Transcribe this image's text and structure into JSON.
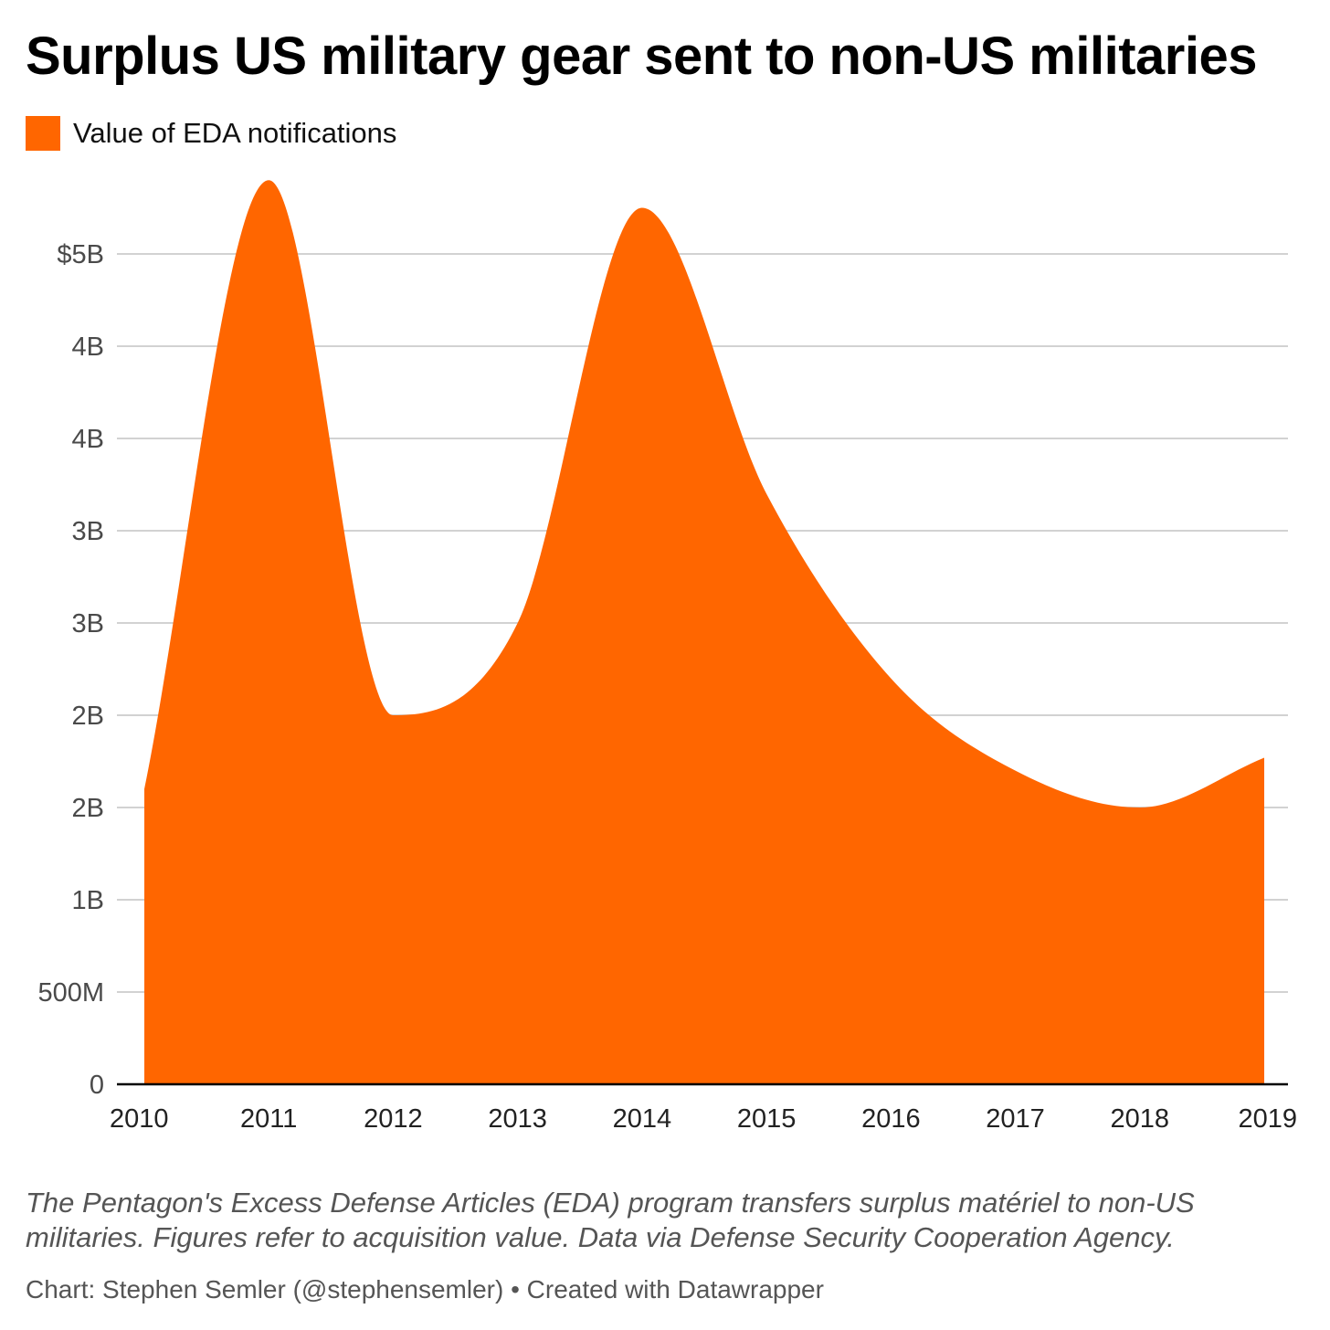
{
  "title": "Surplus US military gear sent to non-US militaries",
  "legend": {
    "label": "Value of EDA notifications",
    "color": "#ff6600"
  },
  "chart_data": {
    "type": "area",
    "series": [
      {
        "name": "Value of EDA notifications",
        "values": [
          1.6,
          4.9,
          2.0,
          2.5,
          4.75,
          3.2,
          2.2,
          1.7,
          1.5,
          1.77
        ]
      }
    ],
    "x": [
      2010,
      2011,
      2012,
      2013,
      2014,
      2015,
      2016,
      2017,
      2018,
      2019
    ],
    "y_ticks": [
      0,
      0.5,
      1,
      1.5,
      2,
      2.5,
      3,
      3.5,
      4,
      4.5
    ],
    "y_tick_labels": [
      "0",
      "500M",
      "1B",
      "2B",
      "2B",
      "3B",
      "3B",
      "4B",
      "4B",
      "$5B"
    ],
    "ylim": [
      0,
      4.5
    ],
    "grid": true,
    "legend_position": "top-left"
  },
  "notes": "The Pentagon's Excess Defense Articles (EDA) program transfers surplus matériel to non-US militaries. Figures refer to acquisition value. Data via Defense Security Cooperation Agency.",
  "source": "Chart: Stephen Semler (@stephensemler) • Created with Datawrapper"
}
